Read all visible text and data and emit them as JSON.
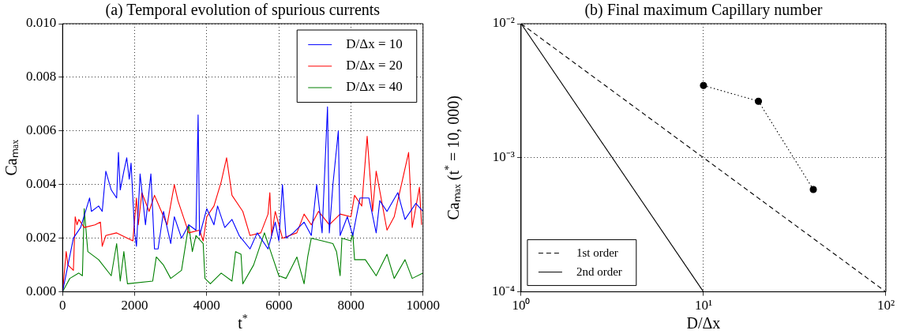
{
  "chart_data": [
    {
      "type": "line",
      "title": "(a) Temporal evolution of spurious currents",
      "xlabel": "t$^{*}$",
      "ylabel": "Caₘₐₓ",
      "xlim": [
        0,
        10000
      ],
      "ylim": [
        0,
        0.01
      ],
      "xticks": [
        0,
        2000,
        4000,
        6000,
        8000,
        10000
      ],
      "yticks": [
        {
          "value": 0,
          "label": "0.000"
        },
        {
          "value": 0.002,
          "label": "0.002"
        },
        {
          "value": 0.004,
          "label": "0.004"
        },
        {
          "value": 0.006,
          "label": "0.006"
        },
        {
          "value": 0.008,
          "label": "0.008"
        },
        {
          "value": 0.01,
          "label": "0.010"
        }
      ],
      "grid": true,
      "legend": "top right",
      "series": [
        {
          "name": "D/Δx = 10",
          "color": "#0000ff",
          "x": [
            0,
            300,
            500,
            750,
            800,
            1000,
            1100,
            1200,
            1350,
            1500,
            1550,
            1600,
            1700,
            1780,
            1850,
            1900,
            2000,
            2050,
            2150,
            2300,
            2450,
            2550,
            2650,
            2800,
            3000,
            3100,
            3300,
            3500,
            3700,
            3760,
            3800,
            4000,
            4200,
            4300,
            4500,
            4700,
            4900,
            5200,
            5400,
            5700,
            5900,
            6000,
            6100,
            6200,
            6400,
            6700,
            6900,
            7050,
            7200,
            7350,
            7400,
            7500,
            7650,
            7700,
            7900,
            8050,
            8250,
            8500,
            8700,
            8800,
            9000,
            9300,
            9500,
            9800,
            10000
          ],
          "values": [
            0,
            0.002,
            0.0024,
            0.0035,
            0.003,
            0.0032,
            0.003,
            0.0045,
            0.0038,
            0.0035,
            0.0052,
            0.0038,
            0.0045,
            0.005,
            0.0042,
            0.0048,
            0.0022,
            0.0017,
            0.0044,
            0.0025,
            0.0044,
            0.0016,
            0.0016,
            0.003,
            0.0018,
            0.0028,
            0.002,
            0.0025,
            0.0023,
            0.0066,
            0.0021,
            0.0031,
            0.0025,
            0.0032,
            0.0024,
            0.0027,
            0.0021,
            0.0016,
            0.0022,
            0.0016,
            0.0026,
            0.0019,
            0.004,
            0.002,
            0.0022,
            0.0026,
            0.0021,
            0.004,
            0.0022,
            0.0069,
            0.0022,
            0.004,
            0.006,
            0.0021,
            0.0028,
            0.0021,
            0.0035,
            0.0035,
            0.0022,
            0.0034,
            0.003,
            0.0037,
            0.0027,
            0.0033,
            0.003
          ]
        },
        {
          "name": "D/Δx = 20",
          "color": "#ff0000",
          "x": [
            0,
            100,
            150,
            300,
            350,
            400,
            450,
            600,
            900,
            1050,
            1100,
            1200,
            1500,
            1800,
            1950,
            2050,
            2100,
            2200,
            2400,
            2550,
            2900,
            3100,
            3200,
            3500,
            3800,
            3900,
            4000,
            4200,
            4400,
            4550,
            4700,
            5000,
            5200,
            5500,
            5700,
            5750,
            5800,
            5900,
            6100,
            6300,
            6500,
            6700,
            6900,
            7100,
            7400,
            7700,
            8000,
            8100,
            8300,
            8450,
            8600,
            8700,
            9000,
            9200,
            9600,
            9700,
            9900,
            9960
          ],
          "values": [
            0,
            0.0015,
            0.001,
            0.0008,
            0.0028,
            0.0025,
            0.0027,
            0.0024,
            0.0025,
            0.0026,
            0.0017,
            0.0021,
            0.0022,
            0.002,
            0.0019,
            0.0035,
            0.0025,
            0.0037,
            0.003,
            0.0036,
            0.0025,
            0.004,
            0.0034,
            0.0022,
            0.0023,
            0.0019,
            0.0028,
            0.0032,
            0.0041,
            0.005,
            0.0036,
            0.003,
            0.0021,
            0.0022,
            0.0029,
            0.0037,
            0.0021,
            0.003,
            0.002,
            0.0021,
            0.0022,
            0.0029,
            0.0025,
            0.003,
            0.0025,
            0.0029,
            0.0028,
            0.0036,
            0.0032,
            0.0058,
            0.003,
            0.0045,
            0.0023,
            0.0028,
            0.0052,
            0.0024,
            0.0039,
            0.0025
          ]
        },
        {
          "name": "D/Δx = 40",
          "color": "#008000",
          "x": [
            0,
            200,
            450,
            550,
            600,
            700,
            1000,
            1350,
            1500,
            1600,
            1700,
            1800,
            2500,
            2600,
            2800,
            3000,
            3300,
            3500,
            3600,
            3700,
            3900,
            3950,
            4100,
            4400,
            4700,
            4800,
            4950,
            5000,
            5300,
            5600,
            5800,
            6000,
            6200,
            6500,
            6700,
            6800,
            6900,
            7200,
            7500,
            7600,
            7700,
            7750,
            8000,
            8050,
            8100,
            8400,
            8700,
            9000,
            9200,
            9500,
            9700,
            10000
          ],
          "values": [
            0,
            0.0005,
            0.0007,
            0.0006,
            0.0031,
            0.0015,
            0.0012,
            0.0006,
            0.0018,
            0.0004,
            0.0015,
            0.0003,
            0.0004,
            0.0013,
            0.001,
            0.0005,
            0.0008,
            0.0025,
            0.0015,
            0.0021,
            0.0018,
            0.0005,
            0.0003,
            0.0007,
            0.0004,
            0.0015,
            0.0014,
            0.0003,
            0.001,
            0.0022,
            0.0014,
            0.0006,
            0.0005,
            0.0013,
            0.0003,
            0.0013,
            0.002,
            0.0019,
            0.0018,
            0.0015,
            0.0006,
            0.002,
            0.0019,
            0.0022,
            0.0012,
            0.0012,
            0.0006,
            0.0014,
            0.0005,
            0.0012,
            0.0005,
            0.0007
          ]
        }
      ]
    },
    {
      "type": "line",
      "title": "(b) Final maximum Capillary number",
      "xlabel": "D/Δx",
      "ylabel": "Caₘₐₓ (t$^{*}$ = 10, 000)",
      "log": "xy",
      "xlim": [
        1,
        100
      ],
      "ylim": [
        0.0001,
        0.01
      ],
      "xticks": [
        {
          "value": 1,
          "label": "10⁰"
        },
        {
          "value": 10,
          "label": "10¹"
        },
        {
          "value": 100,
          "label": "10²"
        }
      ],
      "yticks": [
        {
          "value": 0.0001,
          "label": "10⁻⁴"
        },
        {
          "value": 0.001,
          "label": "10⁻³"
        },
        {
          "value": 0.01,
          "label": "10⁻²"
        }
      ],
      "grid": true,
      "legend": "bottom left",
      "series": [
        {
          "name": "1st order",
          "color": "#000000",
          "x": [
            1,
            100
          ],
          "values": [
            0.01,
            0.0001
          ],
          "line_style": "dashed"
        },
        {
          "name": "2nd order",
          "color": "#000000",
          "x": [
            1,
            10
          ],
          "values": [
            0.01,
            0.0001
          ],
          "line_style": "solid"
        },
        {
          "color": "#000000",
          "x": [
            10,
            20,
            40
          ],
          "values": [
            0.00346,
            0.00264,
            0.00058
          ],
          "marker": "circle",
          "line_style": "dotted"
        }
      ]
    }
  ]
}
